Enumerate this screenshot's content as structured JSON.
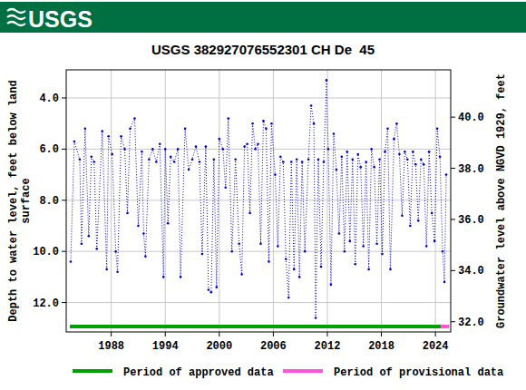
{
  "header": {
    "logo": "USGS"
  },
  "chart_data": {
    "type": "line",
    "title": "USGS 382927076552301 CH De  45",
    "y_label": [
      "Depth to water level, feet below land",
      "surface"
    ],
    "y2_label": "Groundwater level above NGVD 1929, feet",
    "x": [
      1983.5,
      1983.9,
      1984.5,
      1984.7,
      1985.1,
      1985.5,
      1985.8,
      1986.1,
      1986.4,
      1987.0,
      1987.5,
      1987.7,
      1988.1,
      1988.5,
      1988.7,
      1989.1,
      1989.5,
      1989.8,
      1990.1,
      1990.6,
      1991.0,
      1991.4,
      1991.6,
      1991.8,
      1992.2,
      1992.6,
      1993.0,
      1993.4,
      1993.8,
      1994.0,
      1994.3,
      1994.6,
      1995.0,
      1995.4,
      1995.7,
      1996.2,
      1996.6,
      1997.0,
      1997.4,
      1997.8,
      1998.1,
      1998.5,
      1998.8,
      1999.1,
      1999.4,
      1999.7,
      2000.0,
      2000.4,
      2000.7,
      2001.0,
      2001.4,
      2001.8,
      2002.2,
      2002.5,
      2002.8,
      2003.1,
      2003.4,
      2003.7,
      2004.0,
      2004.3,
      2004.6,
      2004.9,
      2005.2,
      2005.5,
      2005.8,
      2006.2,
      2006.5,
      2006.8,
      2007.1,
      2007.4,
      2007.7,
      2008.0,
      2008.3,
      2008.6,
      2008.9,
      2009.2,
      2009.5,
      2009.9,
      2010.2,
      2010.5,
      2010.7,
      2011.0,
      2011.3,
      2011.6,
      2011.9,
      2012.1,
      2012.4,
      2012.7,
      2013.0,
      2013.3,
      2013.6,
      2013.9,
      2014.2,
      2014.5,
      2014.8,
      2015.1,
      2015.4,
      2015.7,
      2016.0,
      2016.3,
      2016.6,
      2016.9,
      2017.2,
      2017.5,
      2017.8,
      2018.1,
      2018.4,
      2018.7,
      2019.0,
      2019.4,
      2019.7,
      2020.0,
      2020.3,
      2020.6,
      2020.9,
      2021.2,
      2021.5,
      2021.8,
      2022.1,
      2022.4,
      2022.7,
      2023.0,
      2023.3,
      2023.6,
      2023.9,
      2024.2,
      2024.5,
      2024.8,
      2025.0,
      2025.2
    ],
    "series": [
      {
        "color": "#0000cc",
        "marker": "dot",
        "line_style": "dotted",
        "values": [
          10.4,
          5.7,
          6.4,
          9.7,
          5.2,
          9.4,
          6.3,
          6.5,
          9.9,
          5.3,
          10.7,
          5.5,
          6.2,
          10.0,
          10.8,
          5.5,
          6.0,
          8.5,
          5.2,
          4.8,
          9.0,
          6.1,
          9.3,
          10.2,
          6.4,
          6.0,
          6.5,
          5.8,
          11.0,
          6.0,
          8.9,
          6.3,
          6.5,
          6.0,
          11.0,
          5.2,
          6.8,
          6.4,
          5.9,
          6.5,
          10.1,
          5.9,
          11.5,
          11.6,
          6.4,
          11.4,
          5.6,
          6.0,
          7.5,
          4.8,
          10.0,
          6.4,
          9.7,
          10.9,
          5.9,
          5.8,
          8.5,
          5.0,
          6.0,
          5.8,
          9.7,
          4.9,
          5.2,
          10.4,
          5.0,
          7.0,
          9.8,
          6.3,
          6.5,
          10.3,
          11.8,
          6.5,
          10.7,
          6.4,
          11.0,
          6.5,
          10.0,
          6.4,
          4.3,
          5.0,
          12.6,
          6.4,
          10.6,
          6.5,
          3.3,
          6.0,
          11.3,
          5.4,
          6.8,
          9.3,
          6.3,
          10.0,
          6.1,
          9.6,
          6.4,
          10.5,
          6.2,
          6.7,
          9.8,
          6.5,
          10.7,
          6.0,
          6.7,
          9.7,
          6.4,
          10.1,
          6.1,
          5.2,
          10.7,
          5.6,
          5.0,
          6.2,
          8.6,
          6.1,
          6.4,
          9.0,
          6.1,
          6.6,
          8.8,
          6.4,
          6.6,
          9.8,
          6.1,
          8.5,
          9.6,
          5.2,
          6.3,
          10.0,
          11.2,
          7.0
        ]
      }
    ],
    "periods": [
      {
        "name": "Period of approved data",
        "color": "#00a000",
        "start": 1983.4,
        "end": 2024.6
      },
      {
        "name": "Period of provisional data",
        "color": "#ff55dd",
        "start": 2024.6,
        "end": 2025.5
      }
    ],
    "xlim": [
      1983.0,
      2025.7
    ],
    "xticks": [
      1988,
      1994,
      2000,
      2006,
      2012,
      2018,
      2024
    ],
    "ylim": [
      13.15,
      2.9
    ],
    "yticks": [
      {
        "value": 4,
        "label": "4.0"
      },
      {
        "value": 6,
        "label": "6.0"
      },
      {
        "value": 8,
        "label": "8.0"
      },
      {
        "value": 10,
        "label": "10.0"
      },
      {
        "value": 12,
        "label": "12.0"
      }
    ],
    "y2lim": [
      31.6,
      41.85
    ],
    "y2ticks": [
      {
        "value": 32,
        "label": "32.0"
      },
      {
        "value": 34,
        "label": "34.0"
      },
      {
        "value": 36,
        "label": "36.0"
      },
      {
        "value": 38,
        "label": "38.0"
      },
      {
        "value": 40,
        "label": "40.0"
      }
    ],
    "grid": true,
    "legend": "bottom"
  }
}
